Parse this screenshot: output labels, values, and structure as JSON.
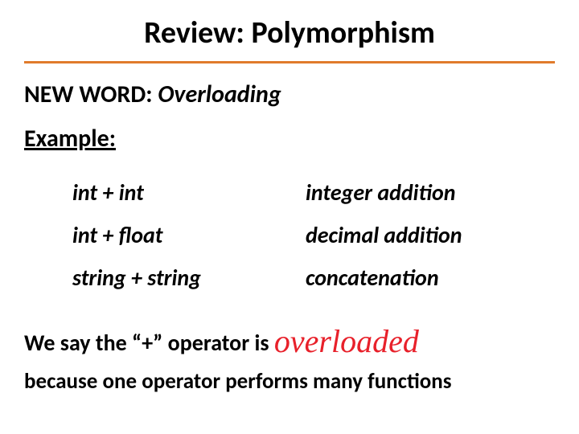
{
  "title": "Review: Polymorphism",
  "rule_color": "#e07b2c",
  "newword": {
    "label": "NEW WORD:  ",
    "term": "Overloading"
  },
  "example_label": "Example:",
  "examples": [
    {
      "expr": "int  +  int",
      "desc": "integer addition"
    },
    {
      "expr": "int  + float",
      "desc": "decimal addition"
    },
    {
      "expr": "string  +  string",
      "desc": "concatenation"
    }
  ],
  "summary": {
    "prefix": "We say the “+” operator is ",
    "highlight": "overloaded",
    "highlight_color": "#e8202a"
  },
  "reason": "because one operator performs many functions"
}
